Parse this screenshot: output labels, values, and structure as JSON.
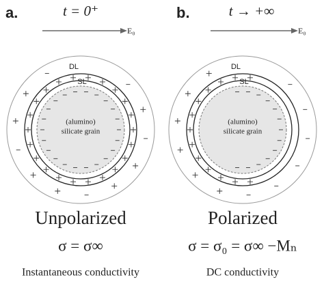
{
  "panels": [
    {
      "letter": "a.",
      "time": "t = 0⁺",
      "field": "E₀",
      "outer_layer": "DL",
      "inner_layer": "SL",
      "grain": [
        "(alumino)",
        "silicate grain"
      ],
      "state": "Unpolarized",
      "equation": "σ = σ∞",
      "caption": "Instantaneous conductivity"
    },
    {
      "letter": "b.",
      "time": "t → +∞",
      "field": "E₀",
      "outer_layer": "DL",
      "inner_layer": "SL",
      "grain": [
        "(alumino)",
        "silicate grain"
      ],
      "state": "Polarized",
      "equation": "σ = σ₀ = σ∞ −Mₙ",
      "caption": "DC conductivity"
    }
  ]
}
